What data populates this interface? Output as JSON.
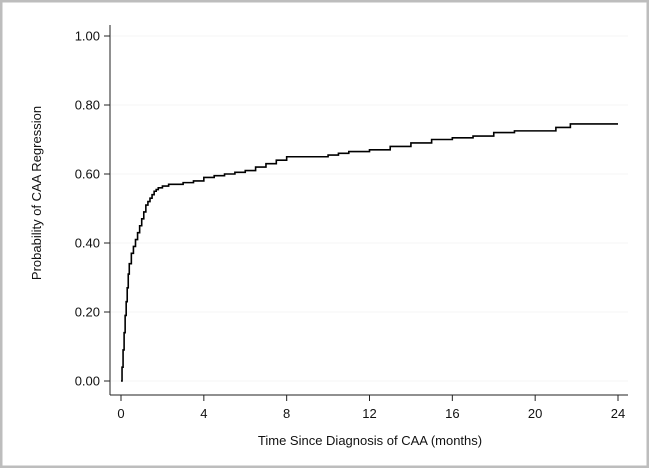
{
  "chart_data": {
    "type": "line",
    "title": "",
    "xlabel": "Time Since Diagnosis of CAA (months)",
    "ylabel": "Probability of CAA Regression",
    "xlim": [
      0,
      24
    ],
    "ylim": [
      0,
      1.0
    ],
    "x_ticks": [
      0,
      4,
      8,
      12,
      16,
      20,
      24
    ],
    "x_tick_labels": [
      "0",
      "4",
      "8",
      "12",
      "16",
      "20",
      "24"
    ],
    "y_ticks": [
      0,
      0.2,
      0.4,
      0.6,
      0.8,
      1.0
    ],
    "y_tick_labels": [
      "0.00",
      "0.20",
      "0.40",
      "0.60",
      "0.80",
      "1.00"
    ],
    "grid": false,
    "step": true,
    "colors": {
      "line": "#000000",
      "frame": "#bdbdbd",
      "axis": "#222222",
      "gridline": "#f4f4f4"
    },
    "series": [
      {
        "x": [
          0,
          0.05,
          0.1,
          0.15,
          0.2,
          0.25,
          0.3,
          0.35,
          0.4,
          0.5,
          0.6,
          0.7,
          0.8,
          0.9,
          1.0,
          1.1,
          1.2,
          1.3,
          1.4,
          1.5,
          1.6,
          1.7,
          1.8,
          2.0,
          2.3,
          2.6,
          3.0,
          3.5,
          4.0,
          4.5,
          5.0,
          5.5,
          6.0,
          6.5,
          7.0,
          7.5,
          8.0,
          9.0,
          10.0,
          10.5,
          11.0,
          12.0,
          13.0,
          14.0,
          15.0,
          16.0,
          17.0,
          18.0,
          19.0,
          20.0,
          21.0,
          21.7,
          22.0,
          23.0,
          24.0
        ],
        "y": [
          0.0,
          0.04,
          0.09,
          0.14,
          0.19,
          0.23,
          0.27,
          0.31,
          0.34,
          0.37,
          0.39,
          0.41,
          0.43,
          0.45,
          0.47,
          0.49,
          0.51,
          0.52,
          0.53,
          0.54,
          0.55,
          0.555,
          0.56,
          0.565,
          0.57,
          0.57,
          0.575,
          0.58,
          0.59,
          0.595,
          0.6,
          0.605,
          0.61,
          0.62,
          0.63,
          0.64,
          0.65,
          0.65,
          0.655,
          0.66,
          0.665,
          0.67,
          0.68,
          0.69,
          0.7,
          0.705,
          0.71,
          0.72,
          0.725,
          0.725,
          0.735,
          0.745,
          0.745,
          0.745,
          0.745
        ]
      }
    ]
  }
}
